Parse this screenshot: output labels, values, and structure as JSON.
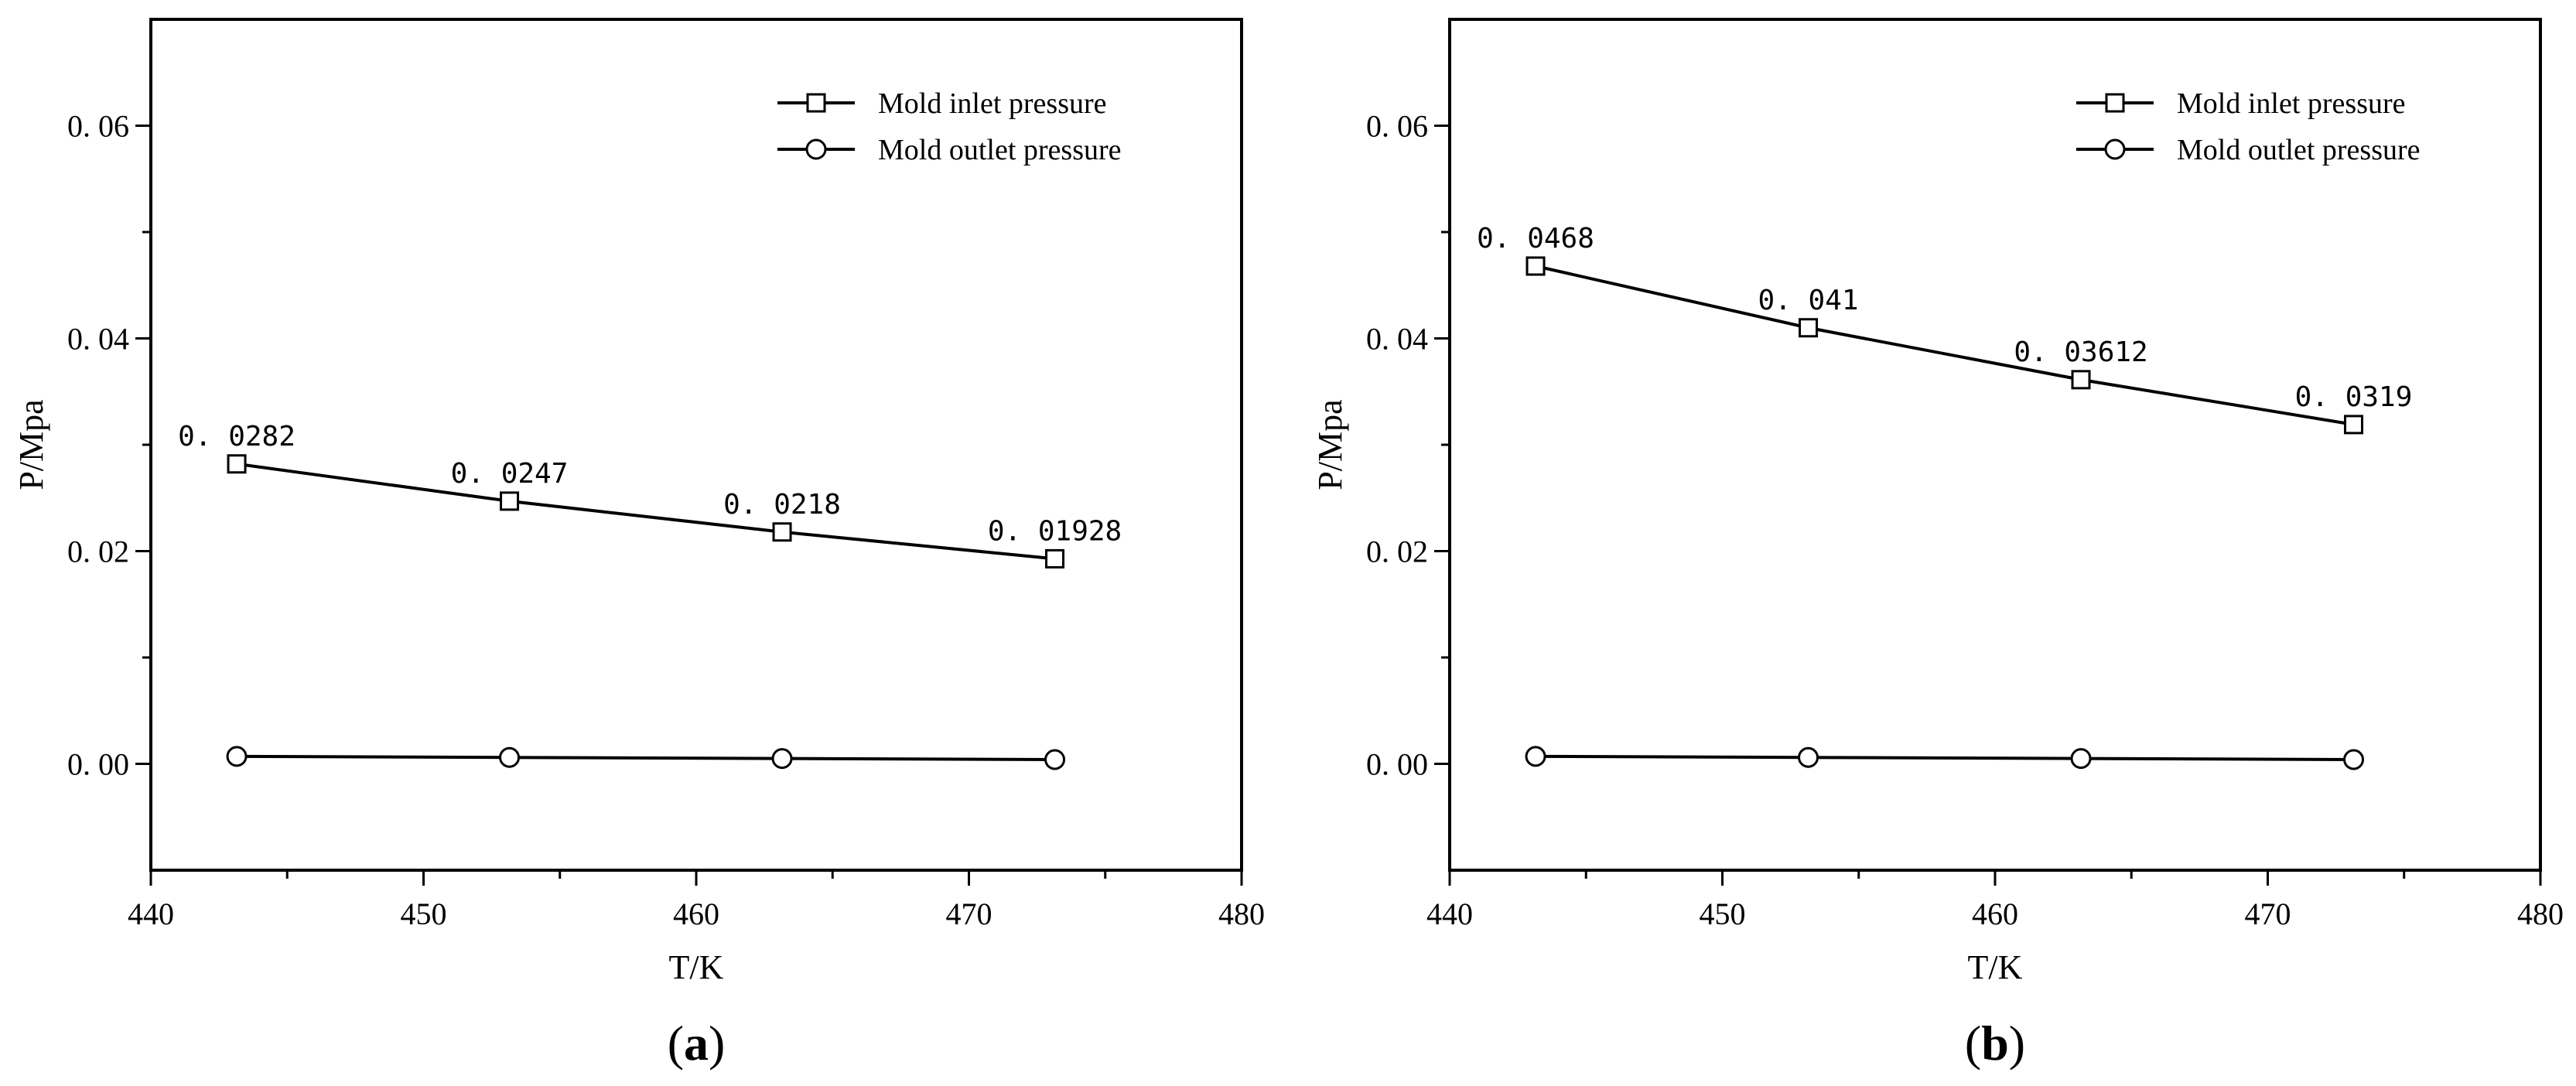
{
  "chart_data": [
    {
      "type": "line",
      "panel_label": "a",
      "xlabel": "T/K",
      "ylabel": "P/Mpa",
      "xlim": [
        440,
        480
      ],
      "ylim": [
        -0.01,
        0.07
      ],
      "xticks": [
        440,
        450,
        460,
        470,
        480
      ],
      "xtick_labels": [
        "440",
        "450",
        "460",
        "470",
        "480"
      ],
      "yticks": [
        0.0,
        0.02,
        0.04,
        0.06
      ],
      "ytick_labels": [
        "0. 00",
        "0. 02",
        "0. 04",
        "0. 06"
      ],
      "grid": false,
      "legend_position": "top-right",
      "series": [
        {
          "name": "Mold inlet pressure",
          "marker": "square",
          "x": [
            443.15,
            453.15,
            463.15,
            473.15
          ],
          "y": [
            0.0282,
            0.0247,
            0.0218,
            0.01928
          ],
          "labels": [
            "0. 0282",
            "0. 0247",
            "0. 0218",
            "0. 01928"
          ]
        },
        {
          "name": "Mold outlet pressure",
          "marker": "circle",
          "x": [
            443.15,
            453.15,
            463.15,
            473.15
          ],
          "y": [
            0.0007,
            0.0006,
            0.0005,
            0.0004
          ],
          "labels": []
        }
      ]
    },
    {
      "type": "line",
      "panel_label": "b",
      "xlabel": "T/K",
      "ylabel": "P/Mpa",
      "xlim": [
        440,
        480
      ],
      "ylim": [
        -0.01,
        0.07
      ],
      "xticks": [
        440,
        450,
        460,
        470,
        480
      ],
      "xtick_labels": [
        "440",
        "450",
        "460",
        "470",
        "480"
      ],
      "yticks": [
        0.0,
        0.02,
        0.04,
        0.06
      ],
      "ytick_labels": [
        "0. 00",
        "0. 02",
        "0. 04",
        "0. 06"
      ],
      "grid": false,
      "legend_position": "top-right",
      "series": [
        {
          "name": "Mold inlet pressure",
          "marker": "square",
          "x": [
            443.15,
            453.15,
            463.15,
            473.15
          ],
          "y": [
            0.0468,
            0.041,
            0.03612,
            0.0319
          ],
          "labels": [
            "0. 0468",
            "0. 041",
            "0. 03612",
            "0. 0319"
          ]
        },
        {
          "name": "Mold outlet pressure",
          "marker": "circle",
          "x": [
            443.15,
            453.15,
            463.15,
            473.15
          ],
          "y": [
            0.0007,
            0.0006,
            0.0005,
            0.0004
          ],
          "labels": []
        }
      ]
    }
  ]
}
